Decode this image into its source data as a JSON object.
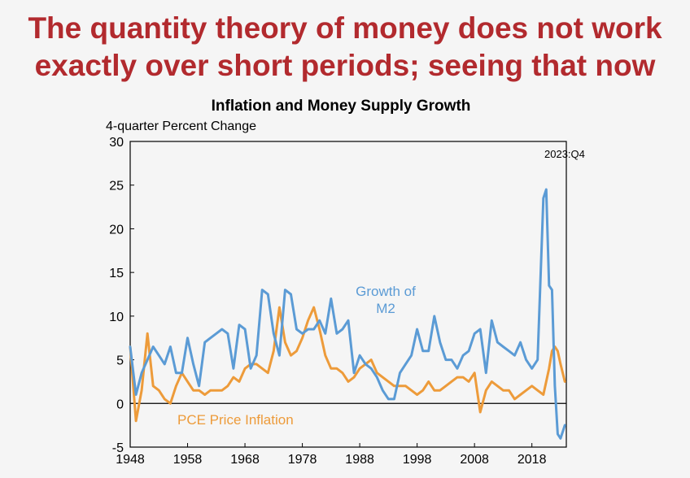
{
  "slide": {
    "headline_line1": "The quantity theory of money does not work",
    "headline_line2": "exactly over short periods; seeing that now"
  },
  "chart_data": {
    "type": "line",
    "title": "Inflation and Money Supply Growth",
    "ylabel": "4-quarter Percent Change",
    "xlabel": "",
    "ylim": [
      -5,
      30
    ],
    "xlim": [
      1948,
      2024
    ],
    "yticks": [
      -5,
      0,
      5,
      10,
      15,
      20,
      25,
      30
    ],
    "xticks": [
      1948,
      1958,
      1968,
      1978,
      1988,
      1998,
      2008,
      2018
    ],
    "grid": false,
    "annotation": "2023:Q4",
    "series": [
      {
        "name": "Growth of M2",
        "label_line1": "Growth of",
        "label_line2": "M2",
        "color": "#5b9bd5",
        "x": [
          1948,
          1949,
          1950,
          1951,
          1952,
          1953,
          1954,
          1955,
          1956,
          1957,
          1958,
          1959,
          1960,
          1961,
          1962,
          1963,
          1964,
          1965,
          1966,
          1967,
          1968,
          1969,
          1970,
          1971,
          1972,
          1973,
          1974,
          1975,
          1976,
          1977,
          1978,
          1979,
          1980,
          1981,
          1982,
          1983,
          1984,
          1985,
          1986,
          1987,
          1988,
          1989,
          1990,
          1991,
          1992,
          1993,
          1994,
          1995,
          1996,
          1997,
          1998,
          1999,
          2000,
          2001,
          2002,
          2003,
          2004,
          2005,
          2006,
          2007,
          2008,
          2009,
          2010,
          2011,
          2012,
          2013,
          2014,
          2015,
          2016,
          2017,
          2018,
          2019,
          2020,
          2020.5,
          2021,
          2021.5,
          2022,
          2022.5,
          2023,
          2023.75
        ],
        "y": [
          6.5,
          1.0,
          3.5,
          5.0,
          6.5,
          5.5,
          4.5,
          6.5,
          3.5,
          3.5,
          7.5,
          4.5,
          2.0,
          7.0,
          7.5,
          8.0,
          8.5,
          8.0,
          4.0,
          9.0,
          8.5,
          4.0,
          5.5,
          13.0,
          12.5,
          8.0,
          5.5,
          13.0,
          12.5,
          8.5,
          8.0,
          8.5,
          8.5,
          9.5,
          8.0,
          12.0,
          8.0,
          8.5,
          9.5,
          3.5,
          5.5,
          4.5,
          4.0,
          3.0,
          1.5,
          0.5,
          0.5,
          3.5,
          4.5,
          5.5,
          8.5,
          6.0,
          6.0,
          10.0,
          7.0,
          5.0,
          5.0,
          4.0,
          5.5,
          6.0,
          8.0,
          8.5,
          3.5,
          9.5,
          7.0,
          6.5,
          6.0,
          5.5,
          7.0,
          5.0,
          4.0,
          5.0,
          23.5,
          24.5,
          13.5,
          13.0,
          2.0,
          -3.5,
          -4.0,
          -2.5
        ]
      },
      {
        "name": "PCE Price Inflation",
        "label_line1": "PCE Price Inflation",
        "color": "#ed9b3a",
        "x": [
          1948,
          1949,
          1950,
          1951,
          1952,
          1953,
          1954,
          1955,
          1956,
          1957,
          1958,
          1959,
          1960,
          1961,
          1962,
          1963,
          1964,
          1965,
          1966,
          1967,
          1968,
          1969,
          1970,
          1971,
          1972,
          1973,
          1974,
          1975,
          1976,
          1977,
          1978,
          1979,
          1980,
          1981,
          1982,
          1983,
          1984,
          1985,
          1986,
          1987,
          1988,
          1989,
          1990,
          1991,
          1992,
          1993,
          1994,
          1995,
          1996,
          1997,
          1998,
          1999,
          2000,
          2001,
          2002,
          2003,
          2004,
          2005,
          2006,
          2007,
          2008,
          2009,
          2010,
          2011,
          2012,
          2013,
          2014,
          2015,
          2016,
          2017,
          2018,
          2019,
          2020,
          2021,
          2021.5,
          2022,
          2022.5,
          2023,
          2023.75
        ],
        "y": [
          6.5,
          -2.0,
          1.5,
          8.0,
          2.0,
          1.5,
          0.5,
          0,
          2.0,
          3.5,
          2.5,
          1.5,
          1.5,
          1.0,
          1.5,
          1.5,
          1.5,
          2.0,
          3.0,
          2.5,
          4.0,
          4.5,
          4.5,
          4.0,
          3.5,
          6.0,
          11.0,
          7.0,
          5.5,
          6.0,
          7.5,
          9.5,
          11.0,
          8.5,
          5.5,
          4.0,
          4.0,
          3.5,
          2.5,
          3.0,
          4.0,
          4.5,
          5.0,
          3.5,
          3.0,
          2.5,
          2.0,
          2.0,
          2.0,
          1.5,
          1.0,
          1.5,
          2.5,
          1.5,
          1.5,
          2.0,
          2.5,
          3.0,
          3.0,
          2.5,
          3.5,
          -1.0,
          1.5,
          2.5,
          2.0,
          1.5,
          1.5,
          0.5,
          1.0,
          1.5,
          2.0,
          1.5,
          1.0,
          4.0,
          6.0,
          6.5,
          6.0,
          4.5,
          2.5
        ]
      }
    ]
  }
}
